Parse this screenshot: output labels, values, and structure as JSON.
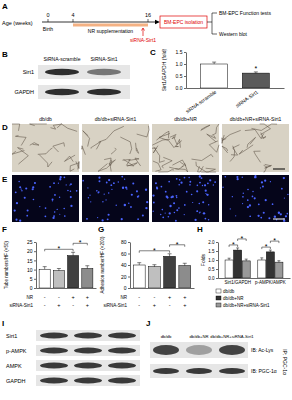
{
  "chart_data": [
    {
      "type": "bar",
      "ylabel": "Sirt1/GAPDH (fold)",
      "categories": [
        "siRNA-scramble",
        "siRNA-Sirt1"
      ],
      "values": [
        1.0,
        0.62
      ],
      "errors": [
        0.08,
        0.05
      ],
      "colors": [
        "#ffffff",
        "#5a5a5a"
      ],
      "ylim": [
        0,
        1.5
      ],
      "yticks": [
        {
          "value": 0,
          "label": "0.0"
        },
        {
          "value": 0.5,
          "label": "0.5"
        },
        {
          "value": 1,
          "label": "1.0"
        },
        {
          "value": 1.5,
          "label": "1.5"
        }
      ],
      "grid": false,
      "significance": [
        {
          "from": 1,
          "to": 1,
          "label": "*"
        }
      ]
    },
    {
      "type": "bar",
      "ylabel": "Tube numbers/HF (×50)",
      "categories": [
        null,
        null,
        null,
        null
      ],
      "values": [
        10.2,
        9.4,
        17.6,
        10.6
      ],
      "errors": [
        1.4,
        1.2,
        1.8,
        1.5
      ],
      "colors": [
        "#ffffff",
        "#bfbfbf",
        "#404040",
        "#8c8c8c"
      ],
      "ylim": [
        0,
        25
      ],
      "yticks": [
        0,
        5,
        10,
        15,
        20,
        25
      ],
      "grid": false,
      "condition_labels": [
        "NR",
        "siRNA-Sirt1"
      ],
      "condition_marks": [
        [
          "-",
          "-",
          "+",
          "+"
        ],
        [
          "-",
          "+",
          "-",
          "+"
        ]
      ],
      "significance": [
        {
          "from": 0,
          "to": 2,
          "label": "*"
        },
        {
          "from": 2,
          "to": 3,
          "label": "*"
        }
      ]
    },
    {
      "type": "bar",
      "ylabel": "Adhesion number/HF (×200)",
      "categories": [
        null,
        null,
        null,
        null
      ],
      "values": [
        40,
        37,
        55,
        39
      ],
      "errors": [
        4,
        3.5,
        4.5,
        4
      ],
      "colors": [
        "#ffffff",
        "#bfbfbf",
        "#404040",
        "#8c8c8c"
      ],
      "ylim": [
        0,
        80
      ],
      "yticks": [
        0,
        20,
        40,
        60,
        80
      ],
      "grid": false,
      "condition_labels": [
        "NR",
        "siRNA-Sirt1"
      ],
      "condition_marks": [
        [
          "-",
          "-",
          "+",
          "+"
        ],
        [
          "-",
          "+",
          "-",
          "+"
        ]
      ],
      "significance": [
        {
          "from": 0,
          "to": 2,
          "label": "*"
        },
        {
          "from": 2,
          "to": 3,
          "label": "*"
        }
      ]
    },
    {
      "type": "bar",
      "ylabel": "Folds",
      "categories": [
        "Sirt1/GAPDH",
        "p-AMPK/AMPK"
      ],
      "series": [
        {
          "name": "db/db",
          "color": "#ffffff",
          "values": [
            1.0,
            1.0
          ],
          "errors": [
            0.1,
            0.12
          ]
        },
        {
          "name": "db/db+NR",
          "color": "#333333",
          "values": [
            1.55,
            1.45
          ],
          "errors": [
            0.12,
            0.1
          ]
        },
        {
          "name": "db/db+NR+siRNA-Sirt1",
          "color": "#999999",
          "values": [
            0.95,
            0.88
          ],
          "errors": [
            0.1,
            0.08
          ]
        }
      ],
      "ylim": [
        0,
        2
      ],
      "yticks": [
        {
          "value": 0,
          "label": "0.0"
        },
        {
          "value": 0.5,
          "label": "0.5"
        },
        {
          "value": 1,
          "label": "1.0"
        },
        {
          "value": 1.5,
          "label": "1.5"
        },
        {
          "value": 2,
          "label": "2.0"
        }
      ],
      "grid": false,
      "legend": "bottom",
      "significance": [
        {
          "category": 0,
          "from": 0,
          "to": 1,
          "label": "*"
        },
        {
          "category": 0,
          "from": 1,
          "to": 2,
          "label": "*"
        },
        {
          "category": 1,
          "from": 0,
          "to": 1,
          "label": "*"
        },
        {
          "category": 1,
          "from": 1,
          "to": 2,
          "label": "*"
        }
      ]
    }
  ],
  "figure": {
    "panel_labels": [
      "A",
      "B",
      "C",
      "D",
      "E",
      "F",
      "G",
      "H",
      "I",
      "J"
    ],
    "timeline": {
      "axis_label": "Age (weeks)",
      "ticks": [
        0,
        4,
        16
      ],
      "start_label": "Birth",
      "treatment_label": "NR supplementation",
      "injection_label": "siRNA-Sirt1",
      "isolation_label": "BM-EPC isolation",
      "outcomes": [
        "BM-EPC Function tests",
        "Western blot"
      ]
    },
    "blot_b": {
      "columns": [
        "SiRNA-scramble",
        "SiRNA-Sirt1"
      ],
      "rows": [
        "Sirt1",
        "GAPDH"
      ]
    },
    "micrographs": {
      "groups": [
        "db/db",
        "db/db+siRNA-Sirt1",
        "db/db+NR",
        "db/db+NR+siRNA-Sirt1"
      ]
    },
    "blot_i": {
      "rows": [
        "Sirt1",
        "p-AMPK",
        "AMPK",
        "GAPDH"
      ]
    },
    "blot_j": {
      "columns": [
        "db/db",
        "db/db+NR",
        "db/db+NR+siRNA-Sirt1"
      ],
      "rows": [
        "IB: Ac-Lys",
        "IB: PGC-1α"
      ],
      "side_label": "IP: PGC-1α"
    }
  }
}
